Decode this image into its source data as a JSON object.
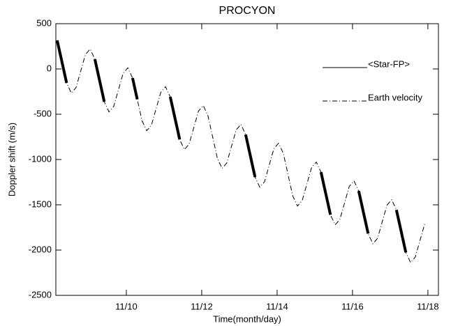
{
  "chart_data": {
    "type": "line",
    "title": "PROCYON",
    "x_label": "Time(month/day)",
    "y_label": "Doppler shift (m/s)",
    "x": [
      8.165,
      8.29,
      8.415,
      8.54,
      8.665,
      8.79,
      8.915,
      9.04,
      9.165,
      9.29,
      9.415,
      9.54,
      9.665,
      9.79,
      9.915,
      10.04,
      10.165,
      10.29,
      10.415,
      10.54,
      10.665,
      10.79,
      10.915,
      11.04,
      11.165,
      11.29,
      11.415,
      11.54,
      11.665,
      11.79,
      11.915,
      12.04,
      12.165,
      12.29,
      12.415,
      12.54,
      12.665,
      12.79,
      12.915,
      13.04,
      13.165,
      13.29,
      13.415,
      13.54,
      13.665,
      13.79,
      13.915,
      14.04,
      14.165,
      14.29,
      14.415,
      14.54,
      14.665,
      14.79,
      14.915,
      15.04,
      15.165,
      15.29,
      15.415,
      15.54,
      15.665,
      15.79,
      15.915,
      16.04,
      16.165,
      16.29,
      16.415,
      16.54,
      16.665,
      16.79,
      16.915,
      17.04,
      17.165,
      17.29,
      17.415,
      17.54,
      17.665,
      17.79,
      17.915
    ],
    "series": [
      {
        "name": "<Star-FP>",
        "color": "#000000",
        "style": "solid",
        "values": [
          316,
          81,
          -154,
          null,
          null,
          null,
          null,
          null,
          108,
          -127,
          -362,
          null,
          null,
          null,
          null,
          null,
          -100,
          -335,
          null,
          null,
          null,
          null,
          null,
          null,
          -308,
          -543,
          -778,
          null,
          null,
          null,
          null,
          null,
          null,
          null,
          null,
          null,
          null,
          null,
          null,
          null,
          -724,
          -959,
          -1194,
          null,
          null,
          null,
          null,
          null,
          null,
          null,
          null,
          null,
          null,
          null,
          null,
          null,
          -1140,
          -1375,
          -1610,
          null,
          null,
          null,
          null,
          null,
          -1348,
          -1583,
          -1818,
          null,
          null,
          null,
          null,
          null,
          -1556,
          -1791,
          -2026,
          null,
          null,
          null,
          null
        ]
      },
      {
        "name": "Earth velocity",
        "color": "#000000",
        "style": "dashdot",
        "values": [
          316,
          81,
          -154,
          -266,
          -206,
          -23,
          160,
          220,
          108,
          -127,
          -362,
          -474,
          -414,
          -231,
          -48,
          12,
          -100,
          -335,
          -570,
          -682,
          -622,
          -439,
          -256,
          -196,
          -308,
          -543,
          -778,
          -890,
          -830,
          -647,
          -464,
          -404,
          -516,
          -751,
          -986,
          -1098,
          -1038,
          -855,
          -672,
          -612,
          -724,
          -959,
          -1194,
          -1306,
          -1246,
          -1063,
          -880,
          -820,
          -932,
          -1167,
          -1402,
          -1514,
          -1454,
          -1271,
          -1088,
          -1028,
          -1140,
          -1375,
          -1610,
          -1722,
          -1662,
          -1479,
          -1296,
          -1236,
          -1348,
          -1583,
          -1818,
          -1930,
          -1870,
          -1687,
          -1504,
          -1444,
          -1556,
          -1791,
          -2026,
          -2138,
          -2078,
          -1895,
          -1712
        ]
      }
    ],
    "xlim": [
      8.13,
      18.28
    ],
    "xticks": [
      {
        "value": 10,
        "label": "11/10"
      },
      {
        "value": 12,
        "label": "11/12"
      },
      {
        "value": 14,
        "label": "11/14"
      },
      {
        "value": 16,
        "label": "11/16"
      },
      {
        "value": 18,
        "label": "11/18"
      }
    ],
    "ylim": [
      -2500,
      500
    ],
    "yticks": [
      500,
      0,
      -500,
      -1000,
      -1500,
      -2000,
      -2500
    ],
    "legend": "upper right",
    "grid": false
  }
}
